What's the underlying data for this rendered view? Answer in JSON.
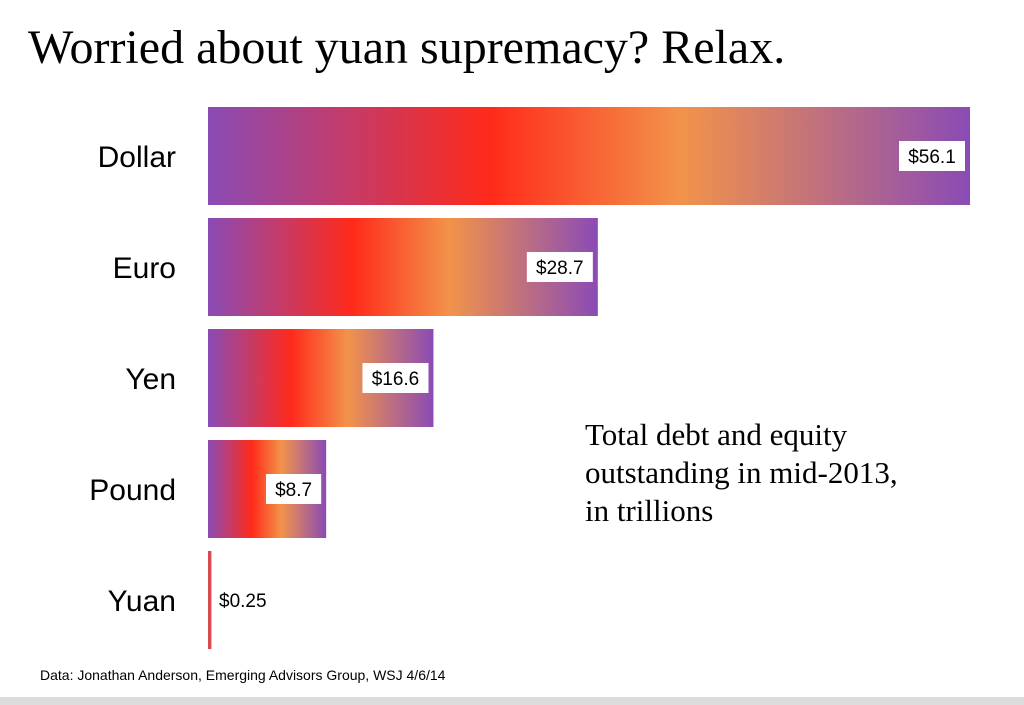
{
  "chart_data": {
    "type": "bar",
    "orientation": "horizontal",
    "title": "Worried about yuan supremacy? Relax.",
    "annotation": [
      "Total debt and equity",
      "outstanding in mid-2013,",
      "in trillions"
    ],
    "source": "Data: Jonathan Anderson, Emerging Advisors Group, WSJ 4/6/14",
    "categories": [
      "Dollar",
      "Euro",
      "Yen",
      "Pound",
      "Yuan"
    ],
    "values": [
      56.1,
      28.7,
      16.6,
      8.7,
      0.25
    ],
    "value_labels": [
      "$56.1",
      "$28.7",
      "$16.6",
      "$8.7",
      "$0.25"
    ],
    "xlim": [
      0,
      56.1
    ],
    "unit": "trillions of dollars",
    "grid": false,
    "legend": "none",
    "bar_gradient": [
      "#8a4bb5",
      "#ff2a1a",
      "#f2934a",
      "#8a4bb5"
    ],
    "label_box_color": "#ffffff"
  }
}
